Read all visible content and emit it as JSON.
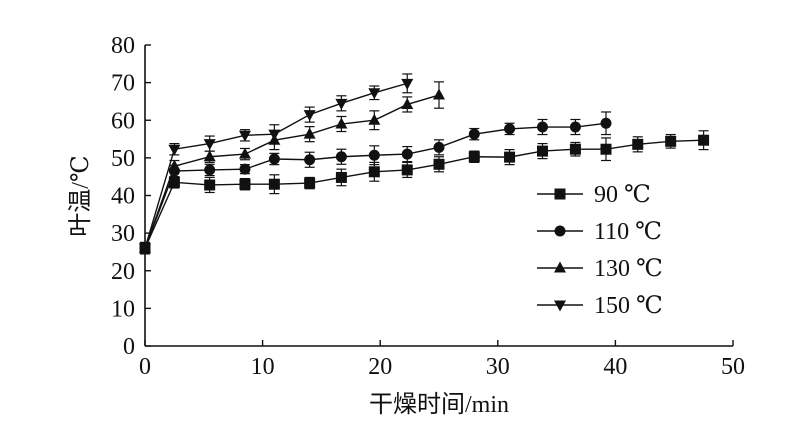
{
  "chart_data": {
    "type": "line",
    "title": "",
    "xlabel": "干燥时间/min",
    "ylabel": "叶温/℃",
    "xlim": [
      0,
      50
    ],
    "ylim": [
      0,
      80
    ],
    "xticks": [
      0,
      10,
      20,
      30,
      40,
      50
    ],
    "yticks": [
      0,
      10,
      20,
      30,
      40,
      50,
      60,
      70,
      80
    ],
    "grid": false,
    "legend_position": "right",
    "series": [
      {
        "name": "90 ℃",
        "marker": "square",
        "points": [
          {
            "x": 0,
            "y": 26,
            "err": 1.5
          },
          {
            "x": 2.5,
            "y": 43.5,
            "err": 1.5
          },
          {
            "x": 5.5,
            "y": 42.8,
            "err": 2
          },
          {
            "x": 8.5,
            "y": 43,
            "err": 1.5
          },
          {
            "x": 11,
            "y": 43,
            "err": 2.5
          },
          {
            "x": 14,
            "y": 43.3,
            "err": 1.5
          },
          {
            "x": 16.7,
            "y": 44.8,
            "err": 2.2
          },
          {
            "x": 19.5,
            "y": 46.3,
            "err": 2.5
          },
          {
            "x": 22.3,
            "y": 46.8,
            "err": 2
          },
          {
            "x": 25,
            "y": 48.3,
            "err": 2
          },
          {
            "x": 28,
            "y": 50.3,
            "err": 1.5
          },
          {
            "x": 31,
            "y": 50.2,
            "err": 2
          },
          {
            "x": 33.8,
            "y": 51.8,
            "err": 2
          },
          {
            "x": 36.6,
            "y": 52.3,
            "err": 1.8
          },
          {
            "x": 39.2,
            "y": 52.3,
            "err": 3
          },
          {
            "x": 41.9,
            "y": 53.6,
            "err": 2
          },
          {
            "x": 44.7,
            "y": 54.4,
            "err": 1.8
          },
          {
            "x": 47.5,
            "y": 54.7,
            "err": 2.5
          }
        ]
      },
      {
        "name": "110 ℃",
        "marker": "circle",
        "points": [
          {
            "x": 0,
            "y": 26,
            "err": 1.5
          },
          {
            "x": 2.5,
            "y": 46.5,
            "err": 1.5
          },
          {
            "x": 5.5,
            "y": 46.8,
            "err": 1.5
          },
          {
            "x": 8.5,
            "y": 47,
            "err": 1.2
          },
          {
            "x": 11,
            "y": 49.7,
            "err": 1.5
          },
          {
            "x": 14,
            "y": 49.5,
            "err": 2
          },
          {
            "x": 16.7,
            "y": 50.3,
            "err": 2
          },
          {
            "x": 19.5,
            "y": 50.7,
            "err": 2.5
          },
          {
            "x": 22.3,
            "y": 51,
            "err": 2
          },
          {
            "x": 25,
            "y": 52.8,
            "err": 2
          },
          {
            "x": 28,
            "y": 56.3,
            "err": 1.5
          },
          {
            "x": 31,
            "y": 57.7,
            "err": 1.5
          },
          {
            "x": 33.8,
            "y": 58.2,
            "err": 2
          },
          {
            "x": 36.6,
            "y": 58.2,
            "err": 2
          },
          {
            "x": 39.2,
            "y": 59.2,
            "err": 3
          }
        ]
      },
      {
        "name": "130 ℃",
        "marker": "triangle-up",
        "points": [
          {
            "x": 0,
            "y": 26,
            "err": 1.5
          },
          {
            "x": 2.5,
            "y": 47.8,
            "err": 1.5
          },
          {
            "x": 5.5,
            "y": 50.3,
            "err": 1.5
          },
          {
            "x": 8.5,
            "y": 51,
            "err": 1.5
          },
          {
            "x": 11,
            "y": 54.7,
            "err": 2.5
          },
          {
            "x": 14,
            "y": 56.3,
            "err": 2
          },
          {
            "x": 16.7,
            "y": 59,
            "err": 2
          },
          {
            "x": 19.5,
            "y": 60,
            "err": 2.5
          },
          {
            "x": 22.3,
            "y": 64.2,
            "err": 2
          },
          {
            "x": 25,
            "y": 66.7,
            "err": 3.5
          }
        ]
      },
      {
        "name": "150 ℃",
        "marker": "triangle-down",
        "points": [
          {
            "x": 0,
            "y": 26,
            "err": 1.5
          },
          {
            "x": 2.5,
            "y": 52.3,
            "err": 1.5
          },
          {
            "x": 5.5,
            "y": 53.8,
            "err": 2
          },
          {
            "x": 8.5,
            "y": 56,
            "err": 1.5
          },
          {
            "x": 11,
            "y": 56.3,
            "err": 2.5
          },
          {
            "x": 14,
            "y": 61.5,
            "err": 2
          },
          {
            "x": 16.7,
            "y": 64.5,
            "err": 2
          },
          {
            "x": 19.5,
            "y": 67.3,
            "err": 1.8
          },
          {
            "x": 22.3,
            "y": 69.8,
            "err": 2.5
          }
        ]
      }
    ]
  }
}
